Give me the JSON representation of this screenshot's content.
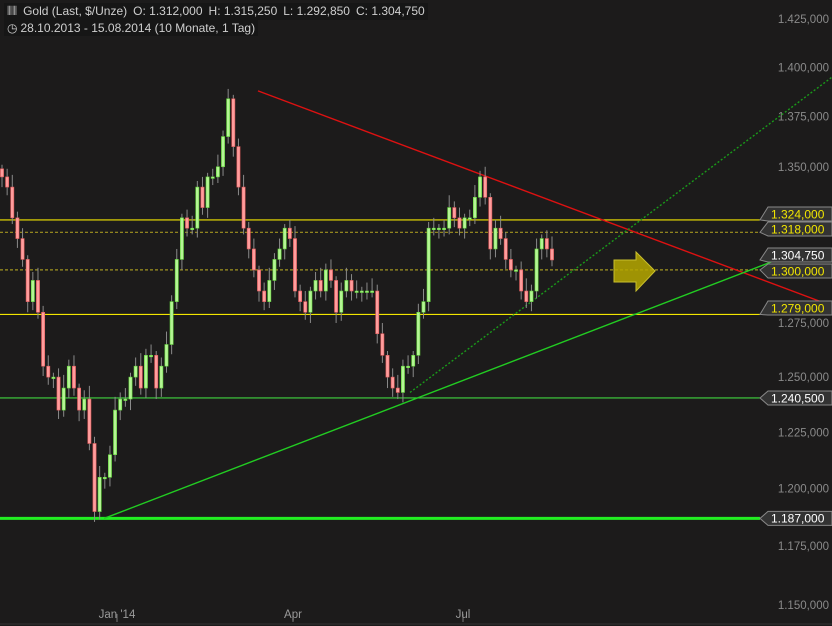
{
  "header": {
    "instrument": "Gold (Last, $/Unze)",
    "open": "O: 1.312,000",
    "high": "H: 1.315,250",
    "low": "L: 1.292,850",
    "close": "C: 1.304,750",
    "range": "28.10.2013 - 15.08.2014 (10 Monate, 1 Tag)",
    "icons": [
      "candlestick-icon",
      "clock-icon"
    ]
  },
  "chart_data": {
    "type": "candlestick",
    "y_scale": "log",
    "ylim": [
      1150,
      1430
    ],
    "x_range": [
      "28.10.2013",
      "15.08.2014"
    ],
    "x_ticks": [
      "Jan '14",
      "Apr",
      "Jul"
    ],
    "y_ticks": [
      {
        "value": 1425,
        "label": "1.425,000"
      },
      {
        "value": 1400,
        "label": "1.400,000"
      },
      {
        "value": 1375,
        "label": "1.375,000"
      },
      {
        "value": 1350,
        "label": "1.350,000"
      },
      {
        "value": 1275,
        "label": "1.275,000"
      },
      {
        "value": 1250,
        "label": "1.250,000"
      },
      {
        "value": 1225,
        "label": "1.225,000"
      },
      {
        "value": 1200,
        "label": "1.200,000"
      },
      {
        "value": 1175,
        "label": "1.175,000"
      },
      {
        "value": 1150,
        "label": "1.150,000"
      }
    ],
    "closes": [
      1345,
      1340,
      1325,
      1315,
      1305,
      1285,
      1295,
      1280,
      1255,
      1250,
      1250,
      1235,
      1245,
      1255,
      1245,
      1235,
      1240,
      1220,
      1190,
      1205,
      1205,
      1215,
      1235,
      1240,
      1240,
      1250,
      1255,
      1245,
      1260,
      1260,
      1245,
      1255,
      1265,
      1285,
      1305,
      1325,
      1320,
      1320,
      1340,
      1330,
      1345,
      1345,
      1350,
      1365,
      1384,
      1360,
      1340,
      1320,
      1310,
      1300,
      1290,
      1285,
      1295,
      1305,
      1310,
      1320,
      1315,
      1290,
      1285,
      1280,
      1290,
      1295,
      1290,
      1300,
      1295,
      1280,
      1290,
      1295,
      1290,
      1290,
      1290,
      1290,
      1290,
      1270,
      1260,
      1250,
      1245,
      1243,
      1255,
      1255,
      1260,
      1280,
      1285,
      1320,
      1320,
      1320,
      1320,
      1330,
      1325,
      1320,
      1325,
      1325,
      1335,
      1345,
      1335,
      1310,
      1320,
      1315,
      1305,
      1300,
      1300,
      1290,
      1285,
      1290,
      1310,
      1315,
      1310,
      1304.75
    ],
    "levels": [
      {
        "value": 1324,
        "label": "1.324,000",
        "style": "solid",
        "color": "#f2e600",
        "text_color": "#f2e600"
      },
      {
        "value": 1318,
        "label": "1.318,000",
        "style": "dashed",
        "color": "#a09420",
        "text_color": "#f2e600"
      },
      {
        "value": 1300,
        "label": "1.300,000",
        "style": "dashed",
        "color": "#a09420",
        "text_color": "#f2e600"
      },
      {
        "value": 1279,
        "label": "1.279,000",
        "style": "solid",
        "color": "#f2e600",
        "text_color": "#f2e600"
      },
      {
        "value": 1240.5,
        "label": "1.240,500",
        "style": "solid",
        "color": "#3fd43f",
        "text_color": "#ffffff"
      },
      {
        "value": 1187,
        "label": "1.187,000",
        "style": "thick",
        "color": "#22ee22",
        "text_color": "#ffffff"
      }
    ],
    "last_price": {
      "value": 1304.75,
      "label": "1.304,750"
    },
    "trendlines": [
      {
        "name": "resistance",
        "color": "#dd1111",
        "style": "solid",
        "from": 1388,
        "to": 1283
      },
      {
        "name": "support",
        "color": "#22cc22",
        "style": "solid",
        "from": 1187,
        "to": 1310
      },
      {
        "name": "support-steep",
        "color": "#1a9a1a",
        "style": "dotted",
        "from": 1243,
        "to": 1395
      }
    ],
    "colors": {
      "up": "#b5f595",
      "down": "#ff9d9d",
      "background": "#1c1b1b",
      "arrow": "#b7a800"
    }
  }
}
